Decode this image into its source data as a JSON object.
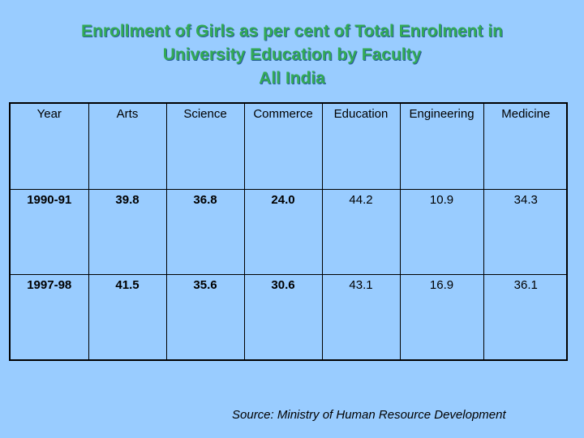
{
  "title": {
    "line1": "Enrollment of Girls as per cent of Total Enrolment in",
    "line2": "University Education by Faculty",
    "line3": "All India"
  },
  "table": {
    "headers": [
      "Year",
      "Arts",
      "Science",
      "Commerce",
      "Education",
      "Engineering",
      "Medicine"
    ],
    "rows": [
      [
        "1990-91",
        "39.8",
        "36.8",
        "24.0",
        "44.2",
        "10.9",
        "34.3"
      ],
      [
        "1997-98",
        "41.5",
        "35.6",
        "30.6",
        "43.1",
        "16.9",
        "36.1"
      ]
    ]
  },
  "source": "Source: Ministry of Human Resource Development"
}
